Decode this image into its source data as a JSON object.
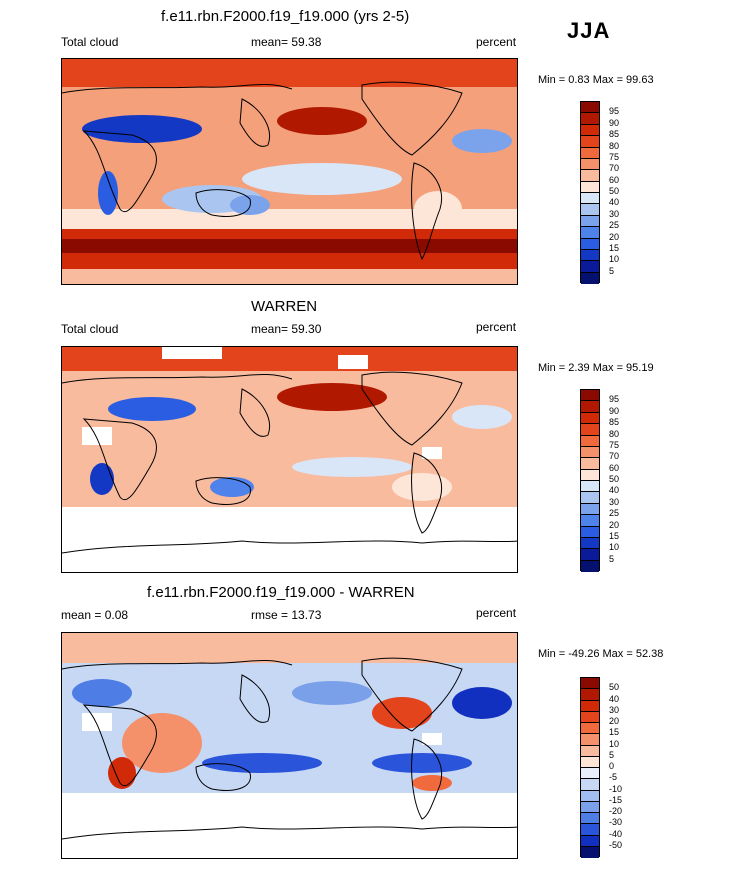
{
  "season": "JJA",
  "panels": [
    {
      "title": "f.e11.rbn.F2000.f19_f19.000 (yrs 2-5)",
      "left_label": "Total cloud",
      "center_label": "mean=  59.38",
      "right_label": "percent",
      "minmax": "Min =   0.83 Max =  99.63",
      "colorbar": {
        "levels": [
          "95",
          "90",
          "85",
          "80",
          "75",
          "70",
          "60",
          "50",
          "40",
          "30",
          "25",
          "20",
          "15",
          "10",
          "5"
        ],
        "colors": [
          "#8b0a00",
          "#b01800",
          "#d02a08",
          "#e4441c",
          "#f06a3e",
          "#f5916a",
          "#f9bb9e",
          "#fde6d8",
          "#d9e6f8",
          "#a9c5f0",
          "#7aa3ec",
          "#4f82ea",
          "#2a5de2",
          "#1238c4",
          "#0a1a98",
          "#06106e"
        ]
      },
      "map": {
        "description": "Model total cloud"
      }
    },
    {
      "title": "WARREN",
      "left_label": "Total cloud",
      "center_label": "mean=  59.30",
      "right_label": "percent",
      "minmax": "Min =   2.39 Max =  95.19",
      "colorbar": {
        "levels": [
          "95",
          "90",
          "85",
          "80",
          "75",
          "70",
          "60",
          "50",
          "40",
          "30",
          "25",
          "20",
          "15",
          "10",
          "5"
        ],
        "colors": [
          "#8b0a00",
          "#b01800",
          "#d02a08",
          "#e4441c",
          "#f06a3e",
          "#f5916a",
          "#f9bb9e",
          "#fde6d8",
          "#d9e6f8",
          "#a9c5f0",
          "#7aa3ec",
          "#4f82ea",
          "#2a5de2",
          "#1238c4",
          "#0a1a98",
          "#06106e"
        ]
      },
      "map": {
        "description": "Observed total cloud"
      }
    },
    {
      "title": "f.e11.rbn.F2000.f19_f19.000 - WARREN",
      "left_label": "mean =   0.08",
      "center_label": "rmse =  13.73",
      "right_label": "percent",
      "minmax": "Min = -49.26 Max =  52.38",
      "colorbar": {
        "levels": [
          "50",
          "40",
          "30",
          "20",
          "15",
          "10",
          "5",
          "0",
          "-5",
          "-10",
          "-15",
          "-20",
          "-30",
          "-40",
          "-50"
        ],
        "colors": [
          "#8b0a00",
          "#b01800",
          "#d02a08",
          "#e4441c",
          "#f06a3e",
          "#f5916a",
          "#f9bb9e",
          "#fde6d8",
          "#e9effb",
          "#c7d8f5",
          "#a2bdf0",
          "#7aa0ea",
          "#4f7de6",
          "#2a55da",
          "#1230c0",
          "#06106e"
        ]
      },
      "map": {
        "description": "Difference model minus observed"
      }
    }
  ]
}
